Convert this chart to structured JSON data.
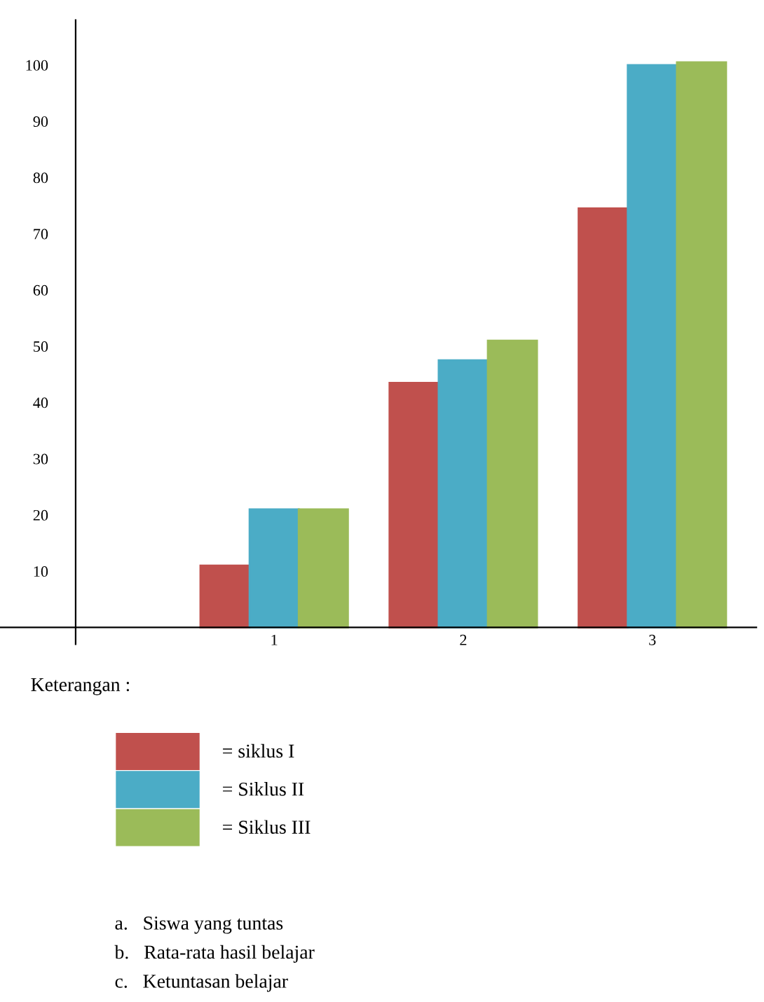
{
  "chart_data": {
    "type": "bar",
    "categories": [
      "1",
      "2",
      "3"
    ],
    "series": [
      {
        "name": "= siklus I",
        "color": "#c0504d",
        "values": [
          11,
          43.5,
          74.5
        ]
      },
      {
        "name": "= Siklus II",
        "color": "#4bacc6",
        "values": [
          21,
          47.5,
          100
        ]
      },
      {
        "name": "= Siklus III",
        "color": "#9bbb59",
        "values": [
          21,
          51,
          100.5
        ]
      }
    ],
    "ylim": [
      -3,
      108
    ],
    "yticks": [
      10,
      20,
      30,
      40,
      50,
      60,
      70,
      80,
      90,
      100
    ],
    "grid": false,
    "legend": "bottom",
    "annotations": [
      "Keterangan :",
      "a.   Siswa yang tuntas",
      "b.   Rata-rata hasil belajar",
      "c.   Ketuntasan belajar"
    ]
  }
}
